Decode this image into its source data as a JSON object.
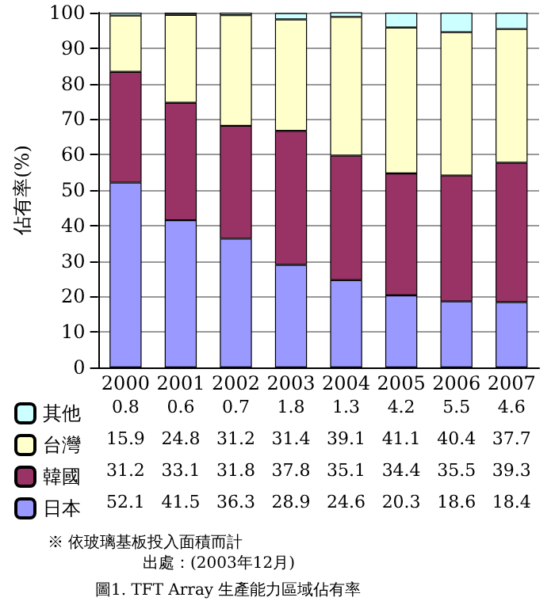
{
  "chart_data": {
    "type": "bar",
    "title": "圖1. TFT Array 生產能力區域佔有率",
    "ylabel": "佔有率(%)",
    "categories": [
      "2000",
      "2001",
      "2002",
      "2003",
      "2004",
      "2005",
      "2006",
      "2007"
    ],
    "stacked": true,
    "series": [
      {
        "name": "日本",
        "color": "#9999ff",
        "values": [
          52.1,
          41.5,
          36.3,
          28.9,
          24.6,
          20.3,
          18.6,
          18.4
        ]
      },
      {
        "name": "韓國",
        "color": "#993366",
        "values": [
          31.2,
          33.1,
          31.8,
          37.8,
          35.1,
          34.4,
          35.5,
          39.3
        ]
      },
      {
        "name": "台灣",
        "color": "#ffffcc",
        "values": [
          15.9,
          24.8,
          31.2,
          31.4,
          39.1,
          41.1,
          40.4,
          37.7
        ]
      },
      {
        "name": "其他",
        "color": "#ccffff",
        "values": [
          0.8,
          0.6,
          0.7,
          1.8,
          1.3,
          4.2,
          5.5,
          4.6
        ]
      }
    ],
    "ylim": [
      0,
      100
    ],
    "yticks": [
      0,
      10,
      20,
      30,
      40,
      50,
      60,
      70,
      80,
      90,
      100
    ],
    "grid": "y",
    "legend": "bottom left",
    "data_labels": true,
    "annotations": [
      "※ 依玻璃基板投入面積而計",
      "出處：(2003年12月)"
    ]
  }
}
